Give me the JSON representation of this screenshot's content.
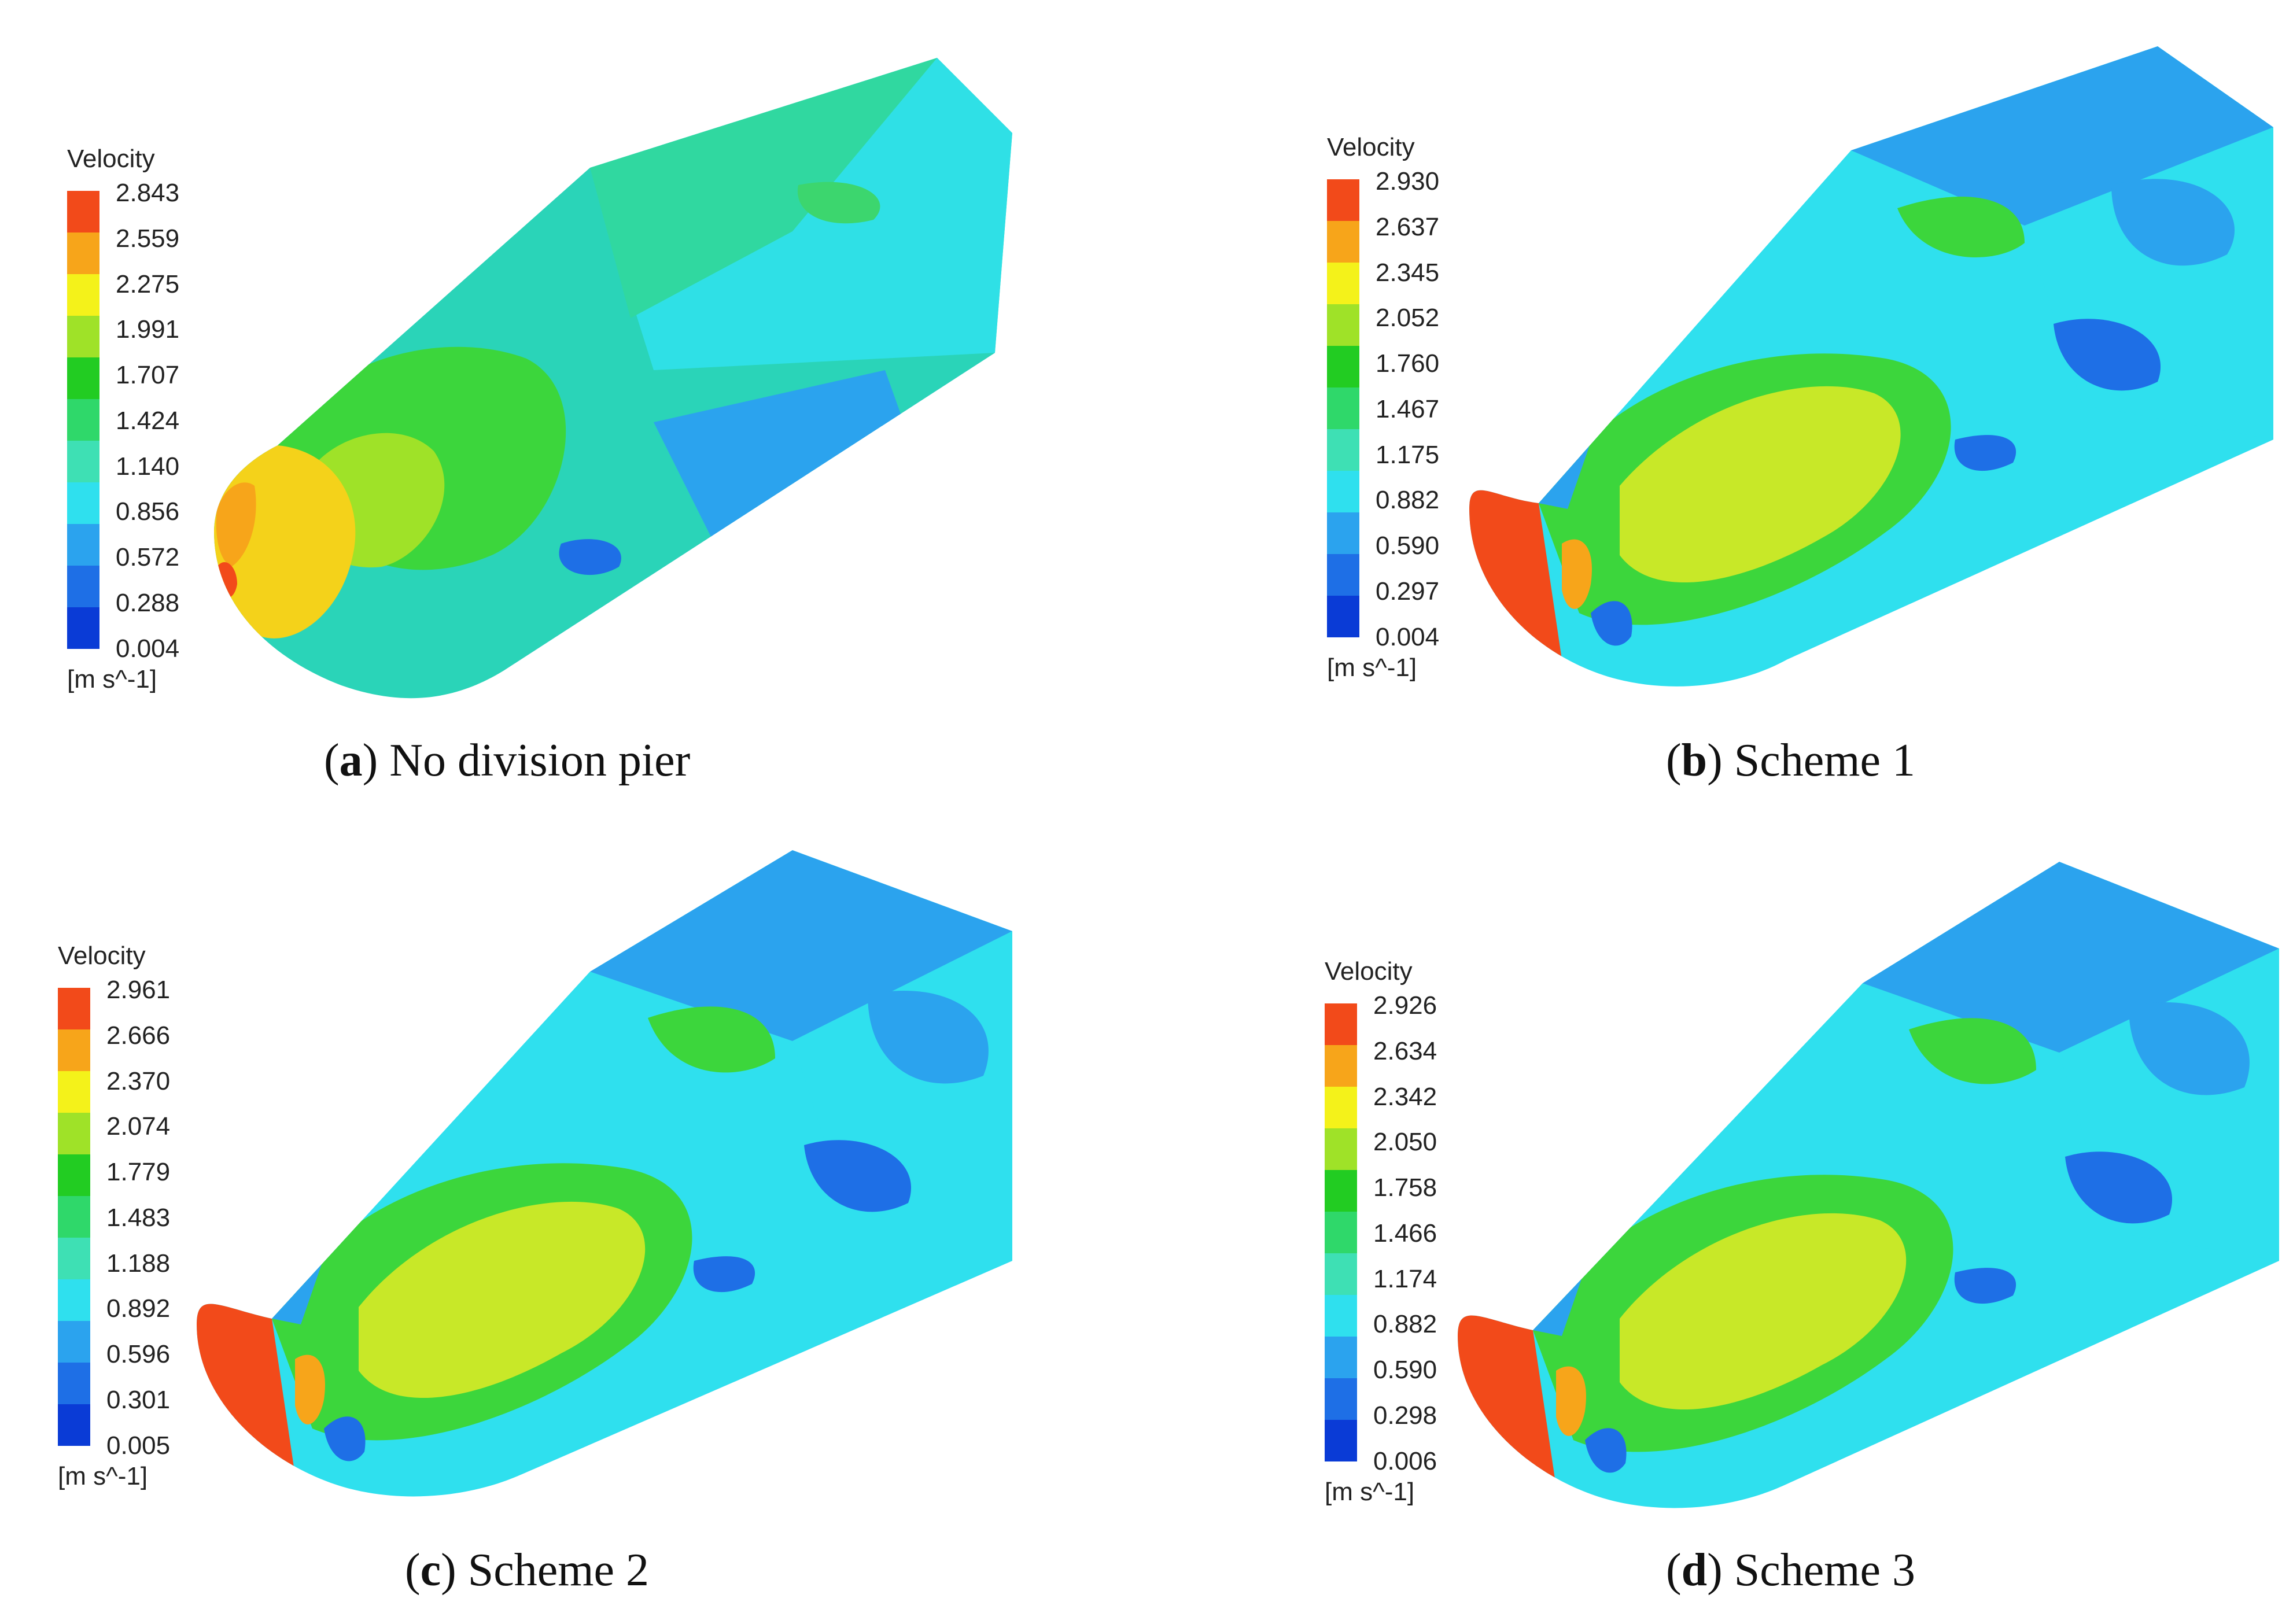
{
  "legend_colors": [
    "#0a3bd6",
    "#1e6fe6",
    "#2ba3ee",
    "#2fe0ee",
    "#3ee0b4",
    "#2fd86a",
    "#22cc22",
    "#9fe228",
    "#f4f21a",
    "#f7a51a",
    "#f24a1a"
  ],
  "panels": [
    {
      "id": "a",
      "legend_title": "Velocity",
      "legend_unit": "[m s^-1]",
      "ticks": [
        "2.843",
        "2.559",
        "2.275",
        "1.991",
        "1.707",
        "1.424",
        "1.140",
        "0.856",
        "0.572",
        "0.288",
        "0.004"
      ],
      "caption_letter": "a",
      "caption_text": "No division pier"
    },
    {
      "id": "b",
      "legend_title": "Velocity",
      "legend_unit": "[m s^-1]",
      "ticks": [
        "2.930",
        "2.637",
        "2.345",
        "2.052",
        "1.760",
        "1.467",
        "1.175",
        "0.882",
        "0.590",
        "0.297",
        "0.004"
      ],
      "caption_letter": "b",
      "caption_text": "Scheme 1"
    },
    {
      "id": "c",
      "legend_title": "Velocity",
      "legend_unit": "[m s^-1]",
      "ticks": [
        "2.961",
        "2.666",
        "2.370",
        "2.074",
        "1.779",
        "1.483",
        "1.188",
        "0.892",
        "0.596",
        "0.301",
        "0.005"
      ],
      "caption_letter": "c",
      "caption_text": "Scheme 2"
    },
    {
      "id": "d",
      "legend_title": "Velocity",
      "legend_unit": "[m s^-1]",
      "ticks": [
        "2.926",
        "2.634",
        "2.342",
        "2.050",
        "1.758",
        "1.466",
        "1.174",
        "0.882",
        "0.590",
        "0.298",
        "0.006"
      ],
      "caption_letter": "d",
      "caption_text": "Scheme 3"
    }
  ]
}
